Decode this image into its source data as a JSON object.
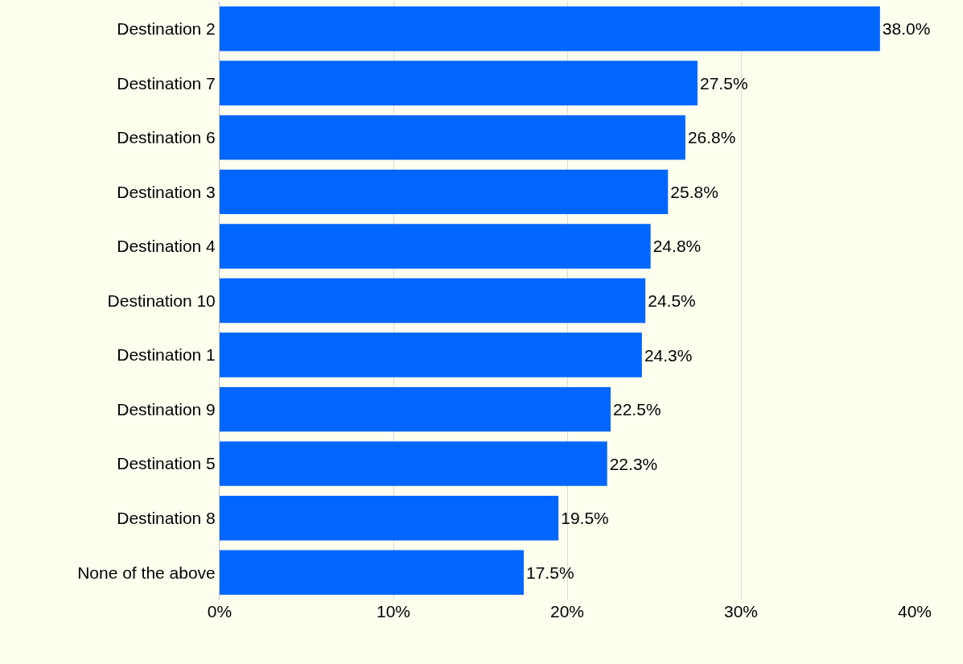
{
  "chart_data": {
    "type": "bar",
    "orientation": "horizontal",
    "categories": [
      "Destination 2",
      "Destination 7",
      "Destination 6",
      "Destination 3",
      "Destination 4",
      "Destination 10",
      "Destination 1",
      "Destination 9",
      "Destination 5",
      "Destination 8",
      "None of the above"
    ],
    "values": [
      38.0,
      27.5,
      26.8,
      25.8,
      24.8,
      24.5,
      24.3,
      22.5,
      22.3,
      19.5,
      17.5
    ],
    "value_labels": [
      "38.0%",
      "27.5%",
      "26.8%",
      "25.8%",
      "24.8%",
      "24.5%",
      "24.3%",
      "22.5%",
      "22.3%",
      "19.5%",
      "17.5%"
    ],
    "color": "#0066ff",
    "xlim": [
      0,
      40
    ],
    "xticks": [
      {
        "value": 0,
        "label": "0%"
      },
      {
        "value": 10,
        "label": "10%"
      },
      {
        "value": 20,
        "label": "20%"
      },
      {
        "value": 30,
        "label": "30%"
      },
      {
        "value": 40,
        "label": "40%"
      }
    ],
    "grid": "x",
    "legend": false
  }
}
